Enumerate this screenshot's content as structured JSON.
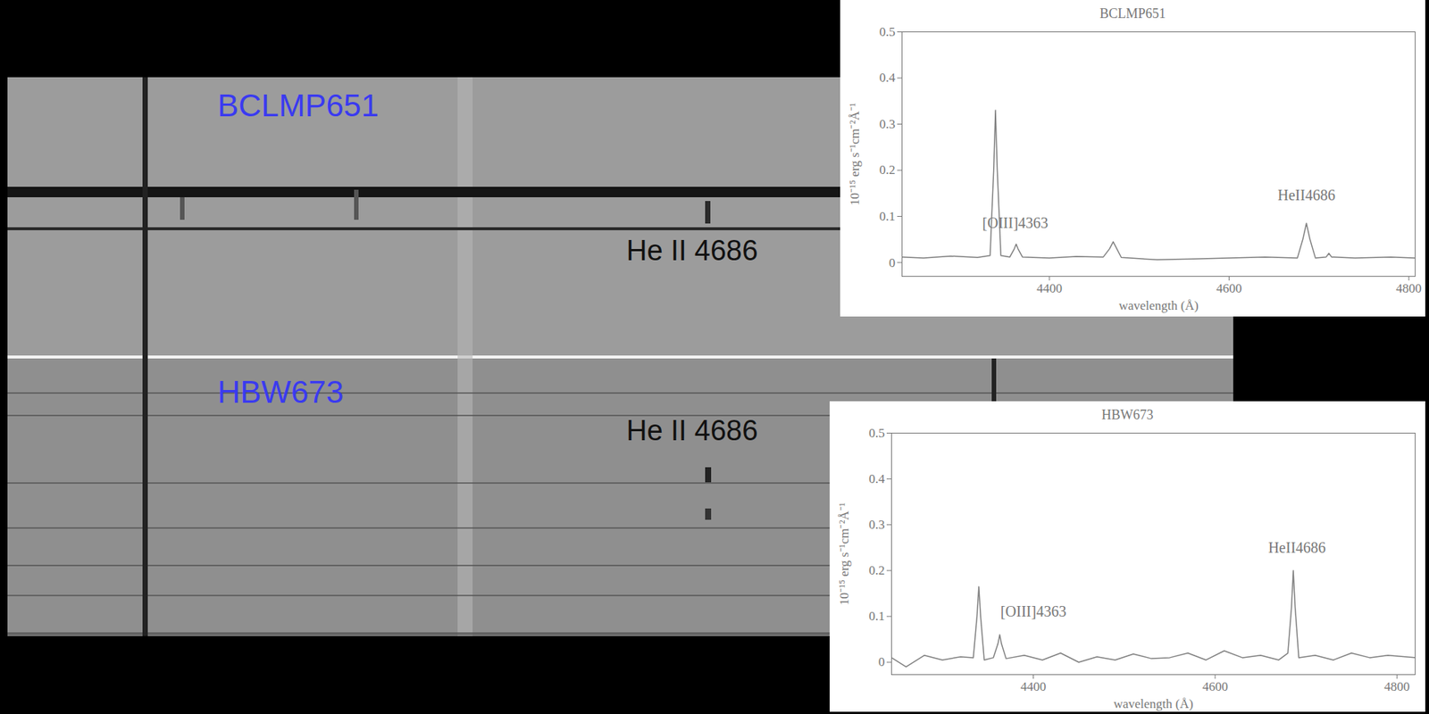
{
  "spectrum_image": {
    "panels": [
      {
        "name": "BCLMP651",
        "line_label": "He II 4686"
      },
      {
        "name": "HBW673",
        "line_label": "He II 4686"
      }
    ]
  },
  "chart_data": [
    {
      "type": "line",
      "title": "BCLMP651",
      "x_label": "wavelength (Å)",
      "y_label": "10⁻¹⁵ erg s⁻¹cm⁻²Å⁻¹",
      "xlim": [
        4236,
        4807
      ],
      "xticks": [
        4400,
        4600,
        4800
      ],
      "ylim": [
        -0.03,
        0.5
      ],
      "yticks": [
        0,
        0.1,
        0.2,
        0.3,
        0.4,
        0.5
      ],
      "color": "#808080",
      "x": [
        4236,
        4260,
        4290,
        4320,
        4334,
        4338,
        4340,
        4342,
        4346,
        4356,
        4361,
        4363,
        4365,
        4370,
        4400,
        4430,
        4460,
        4467,
        4471,
        4475,
        4480,
        4520,
        4560,
        4600,
        4640,
        4676,
        4682,
        4686,
        4690,
        4696,
        4708,
        4711,
        4714,
        4740,
        4780,
        4807
      ],
      "values": [
        0.012,
        0.01,
        0.014,
        0.011,
        0.015,
        0.2,
        0.33,
        0.2,
        0.015,
        0.012,
        0.03,
        0.04,
        0.03,
        0.012,
        0.01,
        0.013,
        0.012,
        0.03,
        0.045,
        0.03,
        0.011,
        0.006,
        0.008,
        0.01,
        0.012,
        0.01,
        0.05,
        0.085,
        0.05,
        0.01,
        0.012,
        0.02,
        0.012,
        0.01,
        0.012,
        0.01
      ],
      "annotations": [
        {
          "text": "[OIII]4363",
          "x": 4362,
          "y": 0.085
        },
        {
          "text": "HeII4686",
          "x": 4686,
          "y": 0.145
        }
      ]
    },
    {
      "type": "line",
      "title": "HBW673",
      "x_label": "wavelength (Å)",
      "y_label": "10⁻¹⁵ erg s⁻¹cm⁻²Å⁻¹",
      "xlim": [
        4244,
        4820
      ],
      "xticks": [
        4400,
        4600,
        4800
      ],
      "ylim": [
        -0.027,
        0.5
      ],
      "yticks": [
        0,
        0.1,
        0.2,
        0.3,
        0.4,
        0.5
      ],
      "color": "#808080",
      "x": [
        4244,
        4260,
        4280,
        4300,
        4320,
        4334,
        4338,
        4340,
        4342,
        4346,
        4356,
        4361,
        4363,
        4365,
        4370,
        4390,
        4410,
        4430,
        4450,
        4470,
        4490,
        4510,
        4530,
        4550,
        4570,
        4590,
        4610,
        4630,
        4650,
        4670,
        4680,
        4684,
        4686,
        4688,
        4692,
        4710,
        4730,
        4750,
        4770,
        4790,
        4820
      ],
      "values": [
        0.01,
        -0.01,
        0.015,
        0.005,
        0.012,
        0.01,
        0.1,
        0.165,
        0.1,
        0.005,
        0.01,
        0.04,
        0.06,
        0.04,
        0.008,
        0.015,
        0.005,
        0.02,
        0.0,
        0.012,
        0.005,
        0.018,
        0.008,
        0.01,
        0.02,
        0.005,
        0.025,
        0.01,
        0.015,
        0.005,
        0.02,
        0.12,
        0.2,
        0.12,
        0.01,
        0.015,
        0.005,
        0.02,
        0.01,
        0.015,
        0.01
      ],
      "annotations": [
        {
          "text": "[OIII]4363",
          "x": 4400,
          "y": 0.11
        },
        {
          "text": "HeII4686",
          "x": 4690,
          "y": 0.25
        }
      ]
    }
  ]
}
